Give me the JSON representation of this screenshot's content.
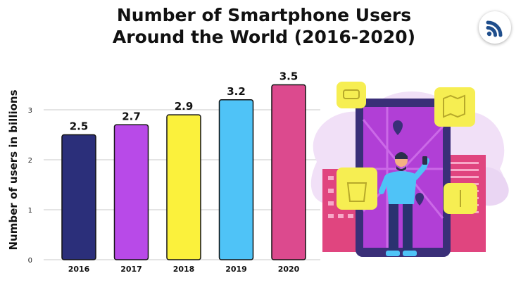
{
  "header": {
    "title_line1": "Number of Smartphone Users",
    "title_line2": "Around the World (2016-2020)"
  },
  "logo": {
    "icon": "wifi-signal-icon",
    "color": "#1f4e8c"
  },
  "chart_data": {
    "type": "bar",
    "title": "Number of Smartphone Users Around the World (2016-2020)",
    "xlabel": "",
    "ylabel": "Number of users in billions",
    "categories": [
      "2016",
      "2017",
      "2018",
      "2019",
      "2020"
    ],
    "values": [
      2.5,
      2.7,
      2.9,
      3.2,
      3.5
    ],
    "data_labels": [
      "2.5",
      "2.7",
      "2.9",
      "3.2",
      "3.5"
    ],
    "bar_colors": [
      "#2b2f7a",
      "#b84ae8",
      "#fbf13c",
      "#4fc3f7",
      "#dc4a8e"
    ],
    "yticks": [
      0,
      1,
      2,
      3
    ],
    "ylim": [
      0,
      3.5
    ],
    "grid": true,
    "legend": "none"
  }
}
